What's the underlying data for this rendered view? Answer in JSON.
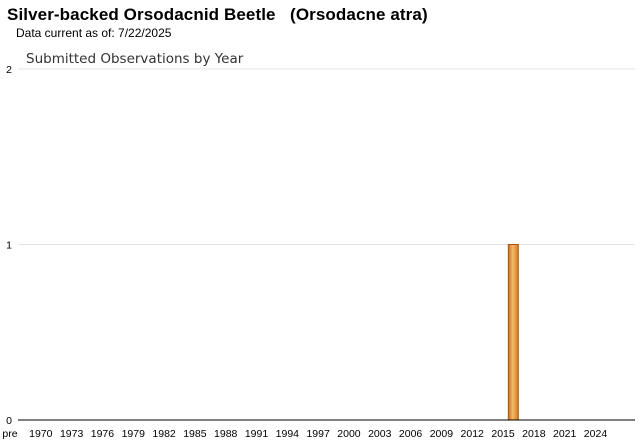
{
  "header": {
    "title": "Silver-backed Orsodacnid Beetle   (Orsodacne atra)",
    "data_current": "Data current as of: 7/22/2025"
  },
  "chart_data": {
    "type": "bar",
    "title": "Submitted Observations by Year",
    "xlabel": "",
    "ylabel": "",
    "ylim": [
      0,
      2
    ],
    "yticks": [
      0,
      1,
      2
    ],
    "grid": true,
    "x_tick_labels": [
      "pre",
      "1970",
      "1973",
      "1976",
      "1979",
      "1982",
      "1985",
      "1988",
      "1991",
      "1994",
      "1997",
      "2000",
      "2003",
      "2006",
      "2009",
      "2012",
      "2015",
      "2018",
      "2021",
      "2024"
    ],
    "categories": [
      "2016"
    ],
    "values": [
      1
    ],
    "bar_color": "#e89a3c",
    "bar_edge_color": "#a8580f"
  }
}
